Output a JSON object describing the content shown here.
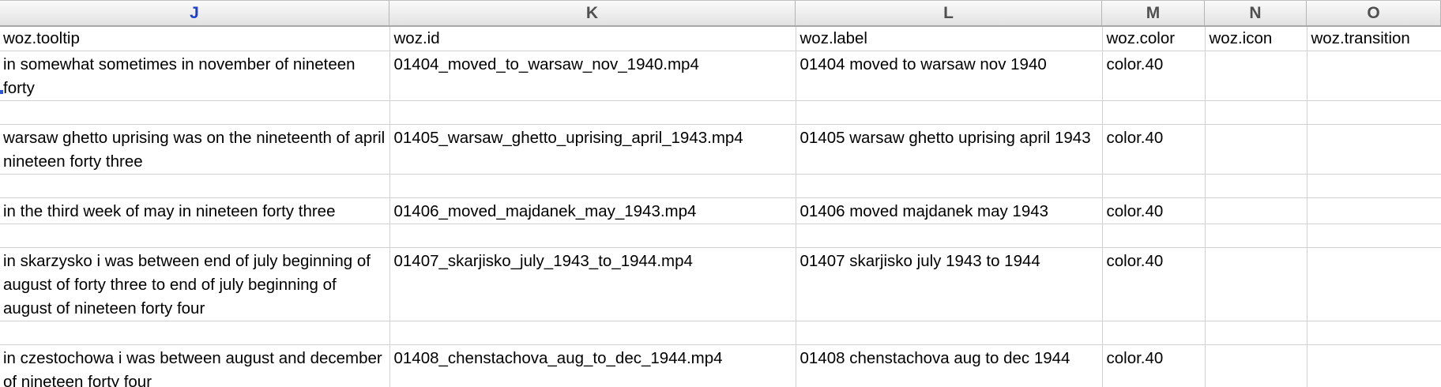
{
  "columns": [
    {
      "letter": "J",
      "field": "woz.tooltip"
    },
    {
      "letter": "K",
      "field": "woz.id"
    },
    {
      "letter": "L",
      "field": "woz.label"
    },
    {
      "letter": "M",
      "field": "woz.color"
    },
    {
      "letter": "N",
      "field": "woz.icon"
    },
    {
      "letter": "O",
      "field": "woz.transition"
    }
  ],
  "active_column": "J",
  "rows": [
    {
      "tooltip": "in somewhat sometimes in november of nineteen forty",
      "id": "01404_moved_to_warsaw_nov_1940.mp4",
      "label": "01404 moved to warsaw nov 1940",
      "color": "color.40",
      "icon": "",
      "transition": ""
    },
    {
      "tooltip": "warsaw ghetto uprising was on the nineteenth of april nineteen forty three",
      "id": "01405_warsaw_ghetto_uprising_april_1943.mp4",
      "label": "01405 warsaw ghetto uprising april 1943",
      "color": "color.40",
      "icon": "",
      "transition": ""
    },
    {
      "tooltip": "in the third week of may in nineteen forty three",
      "id": "01406_moved_majdanek_may_1943.mp4",
      "label": "01406 moved majdanek may 1943",
      "color": "color.40",
      "icon": "",
      "transition": ""
    },
    {
      "tooltip": "in skarzysko i was between end of july beginning of august of forty three to end of july beginning of august of nineteen forty four",
      "id": "01407_skarjisko_july_1943_to_1944.mp4",
      "label": "01407 skarjisko july 1943 to 1944",
      "color": "color.40",
      "icon": "",
      "transition": ""
    },
    {
      "tooltip": "in czestochowa i was between august and december of nineteen forty four",
      "id": "01408_chenstachova_aug_to_dec_1944.mp4",
      "label": "01408 chenstachova aug to dec 1944",
      "color": "color.40",
      "icon": "",
      "transition": ""
    }
  ]
}
